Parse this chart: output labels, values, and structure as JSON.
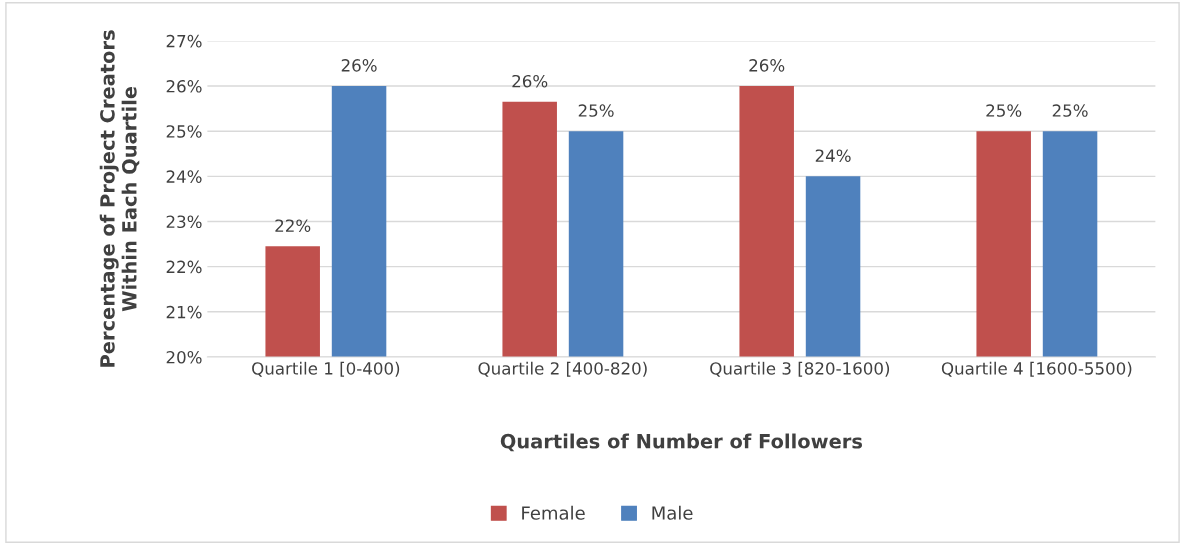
{
  "chart_data": {
    "type": "bar",
    "xlabel": "Quartiles of Number of Followers",
    "ylabel": "Percentage of Project Creators\nWithin Each Quartile",
    "categories": [
      "Quartile 1 [0-400)",
      "Quartile 2 [400-820)",
      "Quartile 3 [820-1600)",
      "Quartile 4 [1600-5500)"
    ],
    "series": [
      {
        "name": "Female",
        "color": "#c0504d",
        "values": [
          22.45,
          25.65,
          26,
          25
        ],
        "value_labels": [
          "22%",
          "26%",
          "26%",
          "25%"
        ]
      },
      {
        "name": "Male",
        "color": "#4f81bd",
        "values": [
          26,
          25,
          24,
          25
        ],
        "value_labels": [
          "26%",
          "25%",
          "24%",
          "25%"
        ]
      }
    ],
    "ylim": [
      20,
      27
    ],
    "yticks": [
      {
        "value": 20,
        "label": "20%"
      },
      {
        "value": 21,
        "label": "21%"
      },
      {
        "value": 22,
        "label": "22%"
      },
      {
        "value": 23,
        "label": "23%"
      },
      {
        "value": 24,
        "label": "24%"
      },
      {
        "value": 25,
        "label": "25%"
      },
      {
        "value": 26,
        "label": "26%"
      },
      {
        "value": 27,
        "label": "27%"
      }
    ],
    "grid": "y",
    "legend": "bottom"
  }
}
